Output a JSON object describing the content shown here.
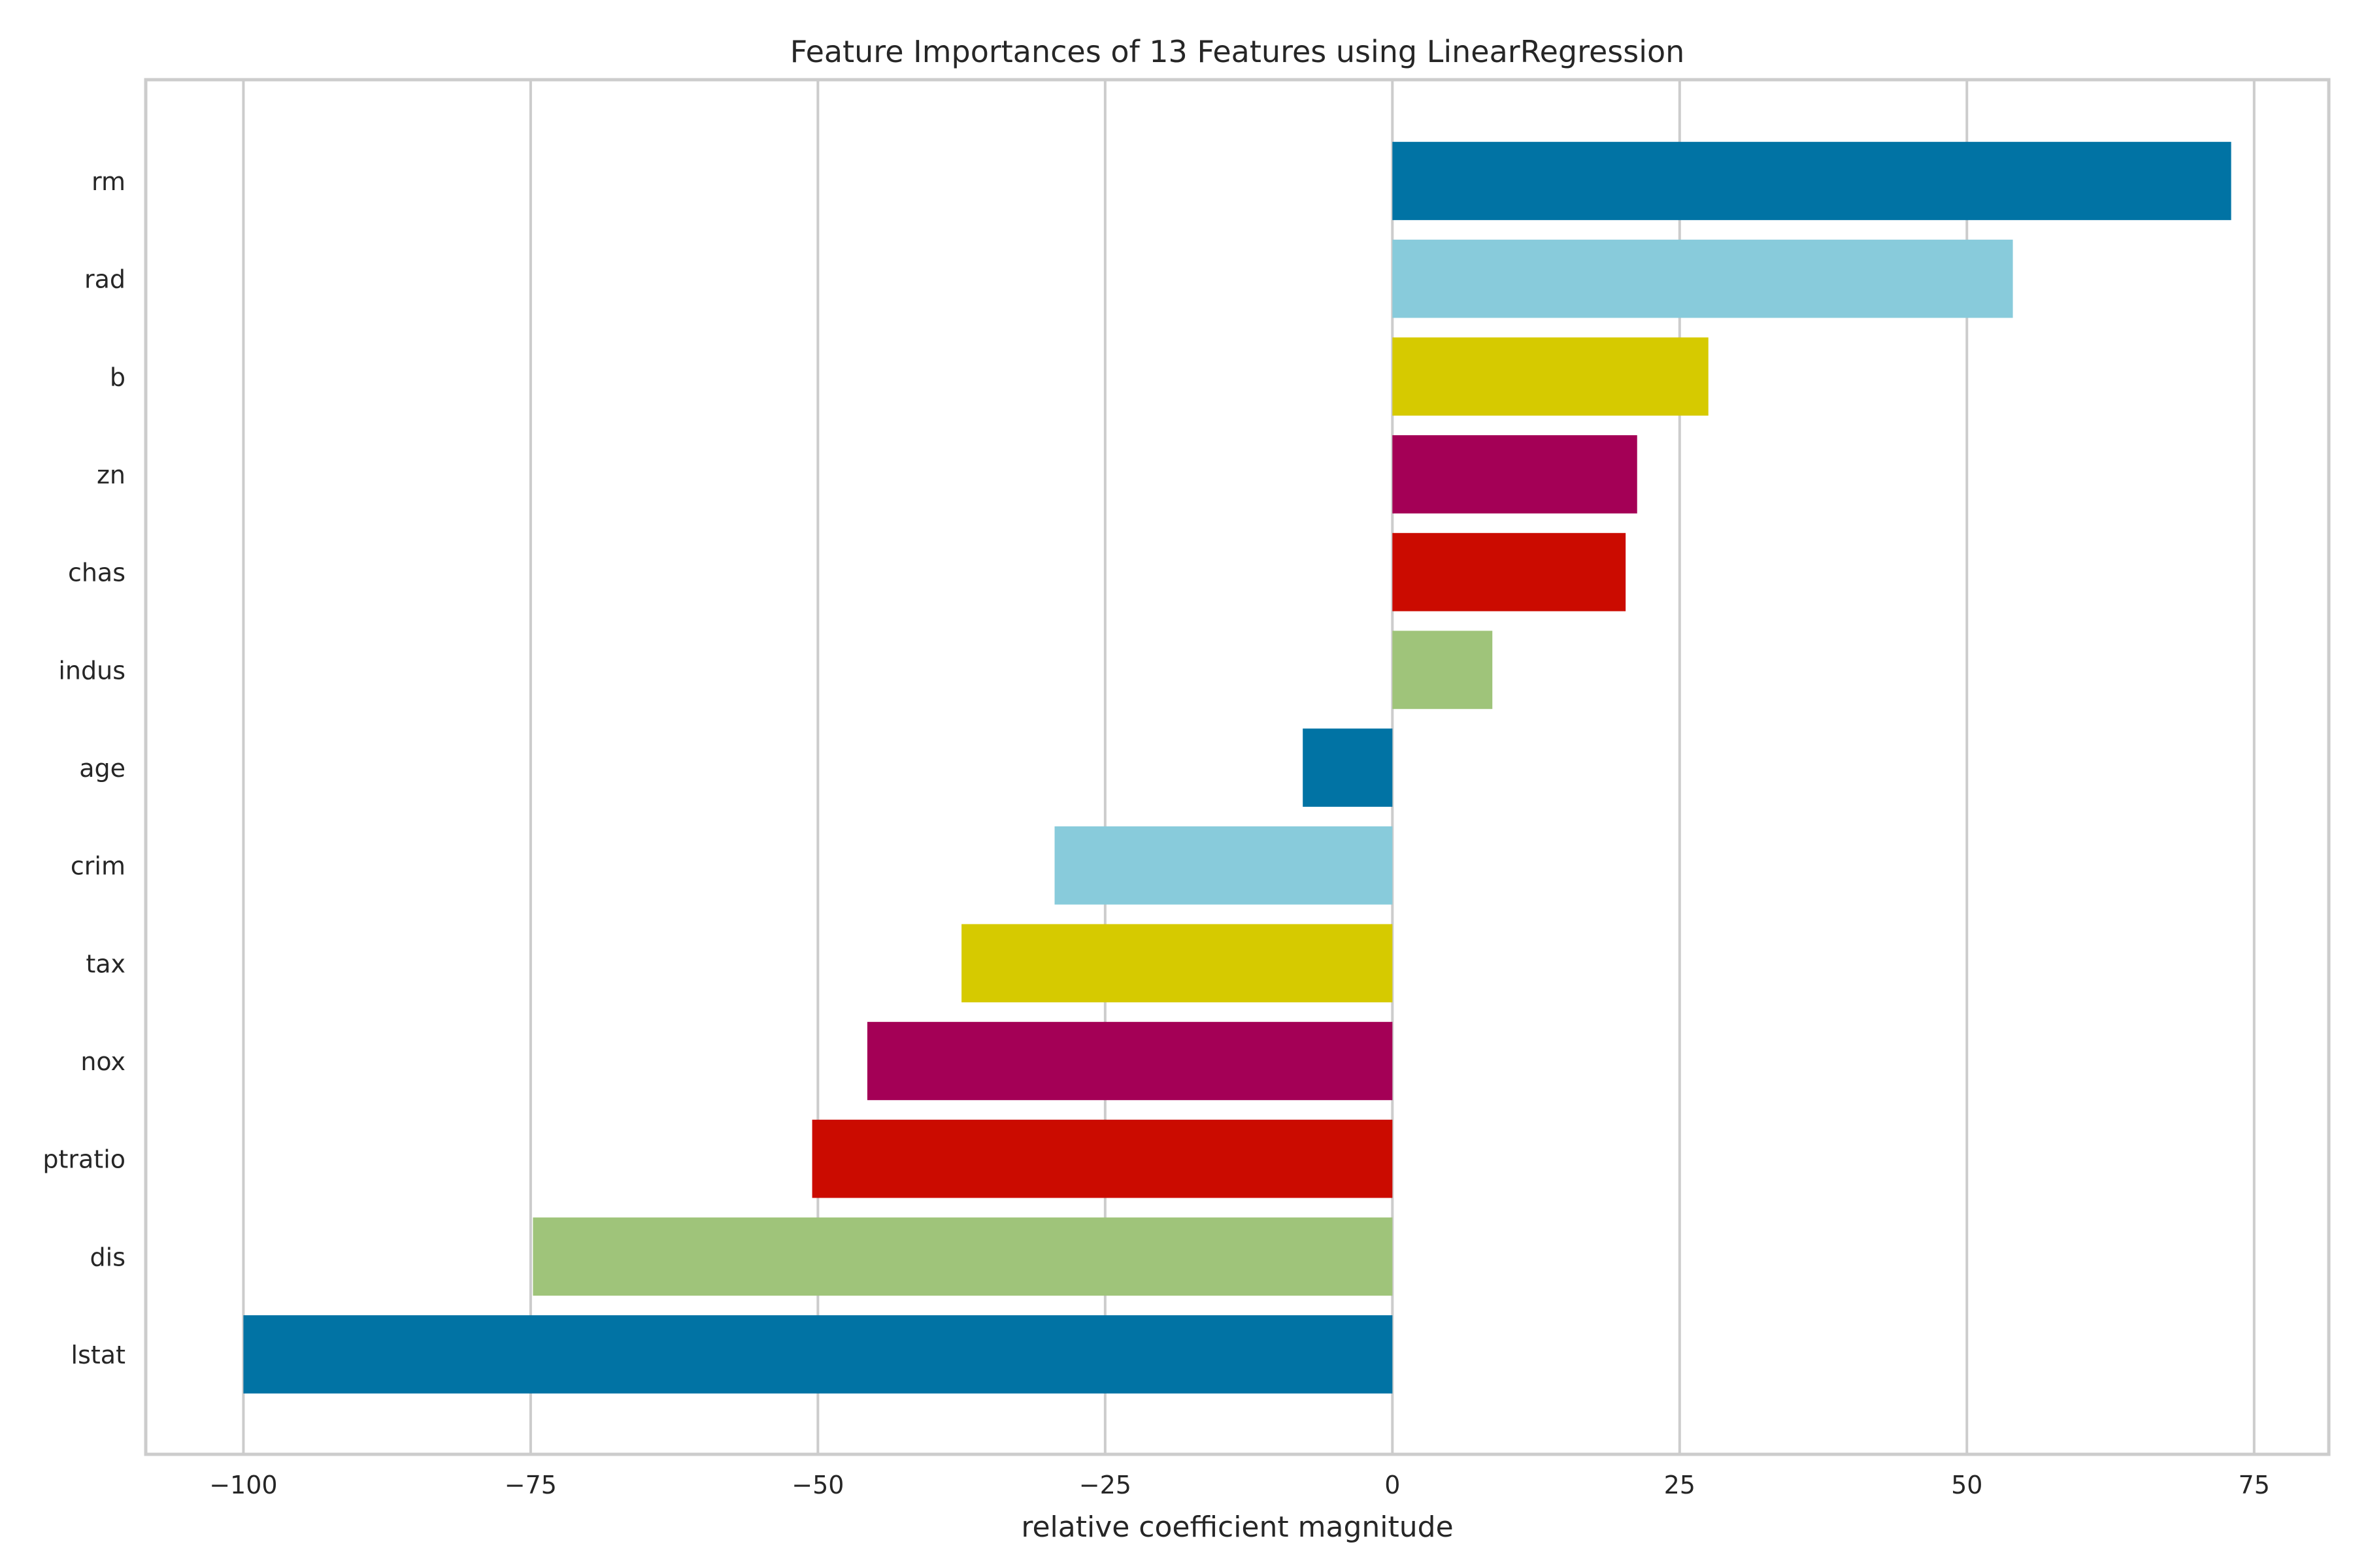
{
  "chart_data": {
    "type": "bar",
    "orientation": "horizontal",
    "title": "Feature Importances of 13 Features using LinearRegression",
    "xlabel": "relative coefficient magnitude",
    "ylabel": "",
    "categories": [
      "rm",
      "rad",
      "b",
      "zn",
      "chas",
      "indus",
      "age",
      "crim",
      "tax",
      "nox",
      "ptratio",
      "dis",
      "lstat"
    ],
    "values": [
      73,
      54,
      27.5,
      21.3,
      20.3,
      8.7,
      -7.8,
      -29.4,
      -37.5,
      -45.7,
      -50.5,
      -74.8,
      -100
    ],
    "colors": [
      "#0173a4",
      "#88cbdb",
      "#d6ca00",
      "#a40056",
      "#cb0b00",
      "#9fc47a",
      "#0173a4",
      "#88cbdb",
      "#d6ca00",
      "#a40056",
      "#cb0b00",
      "#9fc47a",
      "#0173a4"
    ],
    "xlim": [
      -108.5,
      81.5
    ],
    "xticks": [
      -100,
      -75,
      -50,
      -25,
      0,
      25,
      50,
      75
    ],
    "xtick_labels": [
      "−100",
      "−75",
      "−50",
      "−25",
      "0",
      "25",
      "50",
      "75"
    ],
    "grid": true,
    "legend": "none"
  }
}
